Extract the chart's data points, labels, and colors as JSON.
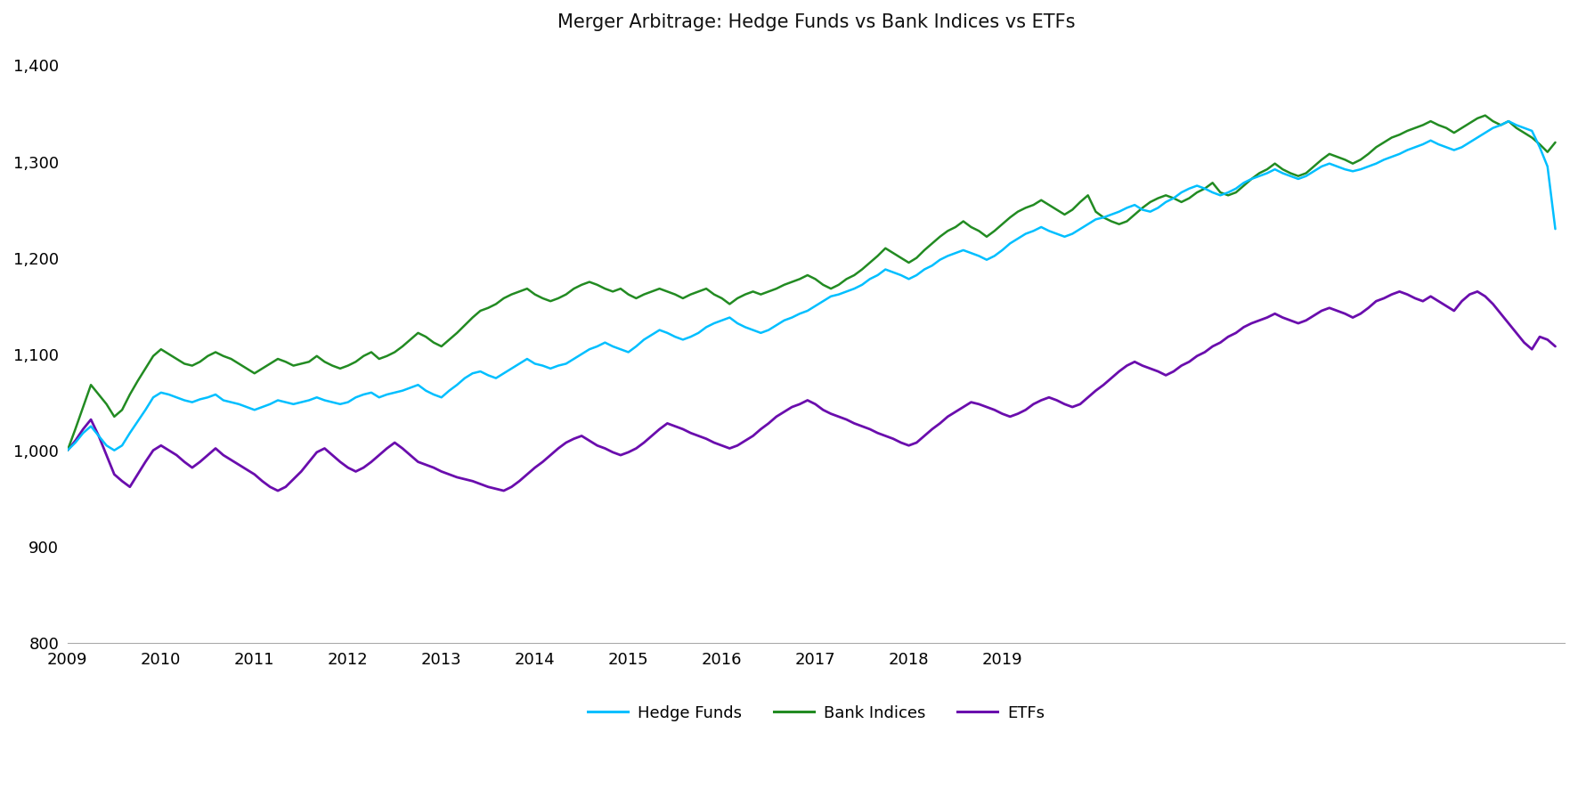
{
  "title": "Merger Arbitrage: Hedge Funds vs Bank Indices vs ETFs",
  "title_fontsize": 15,
  "background_color": "#ffffff",
  "colors": {
    "hedge_funds": "#00BFFF",
    "bank_indices": "#228B22",
    "etfs": "#6A0DAD"
  },
  "ylim": [
    800,
    1420
  ],
  "yticks": [
    800,
    900,
    1000,
    1100,
    1200,
    1300,
    1400
  ],
  "legend_labels": [
    "Hedge Funds",
    "Bank Indices",
    "ETFs"
  ],
  "x_start_year": 2009,
  "x_end_year": 2019,
  "hedge_funds": [
    1000,
    1008,
    1018,
    1025,
    1015,
    1005,
    1000,
    1005,
    1018,
    1030,
    1042,
    1055,
    1060,
    1058,
    1055,
    1052,
    1050,
    1053,
    1055,
    1058,
    1052,
    1050,
    1048,
    1045,
    1042,
    1045,
    1048,
    1052,
    1050,
    1048,
    1050,
    1052,
    1055,
    1052,
    1050,
    1048,
    1050,
    1055,
    1058,
    1060,
    1055,
    1058,
    1060,
    1062,
    1065,
    1068,
    1062,
    1058,
    1055,
    1062,
    1068,
    1075,
    1080,
    1082,
    1078,
    1075,
    1080,
    1085,
    1090,
    1095,
    1090,
    1088,
    1085,
    1088,
    1090,
    1095,
    1100,
    1105,
    1108,
    1112,
    1108,
    1105,
    1102,
    1108,
    1115,
    1120,
    1125,
    1122,
    1118,
    1115,
    1118,
    1122,
    1128,
    1132,
    1135,
    1138,
    1132,
    1128,
    1125,
    1122,
    1125,
    1130,
    1135,
    1138,
    1142,
    1145,
    1150,
    1155,
    1160,
    1162,
    1165,
    1168,
    1172,
    1178,
    1182,
    1188,
    1185,
    1182,
    1178,
    1182,
    1188,
    1192,
    1198,
    1202,
    1205,
    1208,
    1205,
    1202,
    1198,
    1202,
    1208,
    1215,
    1220,
    1225,
    1228,
    1232,
    1228,
    1225,
    1222,
    1225,
    1230,
    1235,
    1240,
    1242,
    1245,
    1248,
    1252,
    1255,
    1250,
    1248,
    1252,
    1258,
    1262,
    1268,
    1272,
    1275,
    1272,
    1268,
    1265,
    1268,
    1272,
    1278,
    1282,
    1285,
    1288,
    1292,
    1288,
    1285,
    1282,
    1285,
    1290,
    1295,
    1298,
    1295,
    1292,
    1290,
    1292,
    1295,
    1298,
    1302,
    1305,
    1308,
    1312,
    1315,
    1318,
    1322,
    1318,
    1315,
    1312,
    1315,
    1320,
    1325,
    1330,
    1335,
    1338,
    1342,
    1338,
    1335,
    1332,
    1315,
    1295,
    1230
  ],
  "bank_indices": [
    1000,
    1022,
    1045,
    1068,
    1058,
    1048,
    1035,
    1042,
    1058,
    1072,
    1085,
    1098,
    1105,
    1100,
    1095,
    1090,
    1088,
    1092,
    1098,
    1102,
    1098,
    1095,
    1090,
    1085,
    1080,
    1085,
    1090,
    1095,
    1092,
    1088,
    1090,
    1092,
    1098,
    1092,
    1088,
    1085,
    1088,
    1092,
    1098,
    1102,
    1095,
    1098,
    1102,
    1108,
    1115,
    1122,
    1118,
    1112,
    1108,
    1115,
    1122,
    1130,
    1138,
    1145,
    1148,
    1152,
    1158,
    1162,
    1165,
    1168,
    1162,
    1158,
    1155,
    1158,
    1162,
    1168,
    1172,
    1175,
    1172,
    1168,
    1165,
    1168,
    1162,
    1158,
    1162,
    1165,
    1168,
    1165,
    1162,
    1158,
    1162,
    1165,
    1168,
    1162,
    1158,
    1152,
    1158,
    1162,
    1165,
    1162,
    1165,
    1168,
    1172,
    1175,
    1178,
    1182,
    1178,
    1172,
    1168,
    1172,
    1178,
    1182,
    1188,
    1195,
    1202,
    1210,
    1205,
    1200,
    1195,
    1200,
    1208,
    1215,
    1222,
    1228,
    1232,
    1238,
    1232,
    1228,
    1222,
    1228,
    1235,
    1242,
    1248,
    1252,
    1255,
    1260,
    1255,
    1250,
    1245,
    1250,
    1258,
    1265,
    1248,
    1242,
    1238,
    1235,
    1238,
    1245,
    1252,
    1258,
    1262,
    1265,
    1262,
    1258,
    1262,
    1268,
    1272,
    1278,
    1268,
    1265,
    1268,
    1275,
    1282,
    1288,
    1292,
    1298,
    1292,
    1288,
    1285,
    1288,
    1295,
    1302,
    1308,
    1305,
    1302,
    1298,
    1302,
    1308,
    1315,
    1320,
    1325,
    1328,
    1332,
    1335,
    1338,
    1342,
    1338,
    1335,
    1330,
    1335,
    1340,
    1345,
    1348,
    1342,
    1338,
    1342,
    1335,
    1330,
    1325,
    1318,
    1310,
    1320
  ],
  "etfs": [
    1000,
    1010,
    1022,
    1032,
    1015,
    995,
    975,
    968,
    962,
    975,
    988,
    1000,
    1005,
    1000,
    995,
    988,
    982,
    988,
    995,
    1002,
    995,
    990,
    985,
    980,
    975,
    968,
    962,
    958,
    962,
    970,
    978,
    988,
    998,
    1002,
    995,
    988,
    982,
    978,
    982,
    988,
    995,
    1002,
    1008,
    1002,
    995,
    988,
    985,
    982,
    978,
    975,
    972,
    970,
    968,
    965,
    962,
    960,
    958,
    962,
    968,
    975,
    982,
    988,
    995,
    1002,
    1008,
    1012,
    1015,
    1010,
    1005,
    1002,
    998,
    995,
    998,
    1002,
    1008,
    1015,
    1022,
    1028,
    1025,
    1022,
    1018,
    1015,
    1012,
    1008,
    1005,
    1002,
    1005,
    1010,
    1015,
    1022,
    1028,
    1035,
    1040,
    1045,
    1048,
    1052,
    1048,
    1042,
    1038,
    1035,
    1032,
    1028,
    1025,
    1022,
    1018,
    1015,
    1012,
    1008,
    1005,
    1008,
    1015,
    1022,
    1028,
    1035,
    1040,
    1045,
    1050,
    1048,
    1045,
    1042,
    1038,
    1035,
    1038,
    1042,
    1048,
    1052,
    1055,
    1052,
    1048,
    1045,
    1048,
    1055,
    1062,
    1068,
    1075,
    1082,
    1088,
    1092,
    1088,
    1085,
    1082,
    1078,
    1082,
    1088,
    1092,
    1098,
    1102,
    1108,
    1112,
    1118,
    1122,
    1128,
    1132,
    1135,
    1138,
    1142,
    1138,
    1135,
    1132,
    1135,
    1140,
    1145,
    1148,
    1145,
    1142,
    1138,
    1142,
    1148,
    1155,
    1158,
    1162,
    1165,
    1162,
    1158,
    1155,
    1160,
    1155,
    1150,
    1145,
    1155,
    1162,
    1165,
    1160,
    1152,
    1142,
    1132,
    1122,
    1112,
    1105,
    1118,
    1115,
    1108
  ]
}
